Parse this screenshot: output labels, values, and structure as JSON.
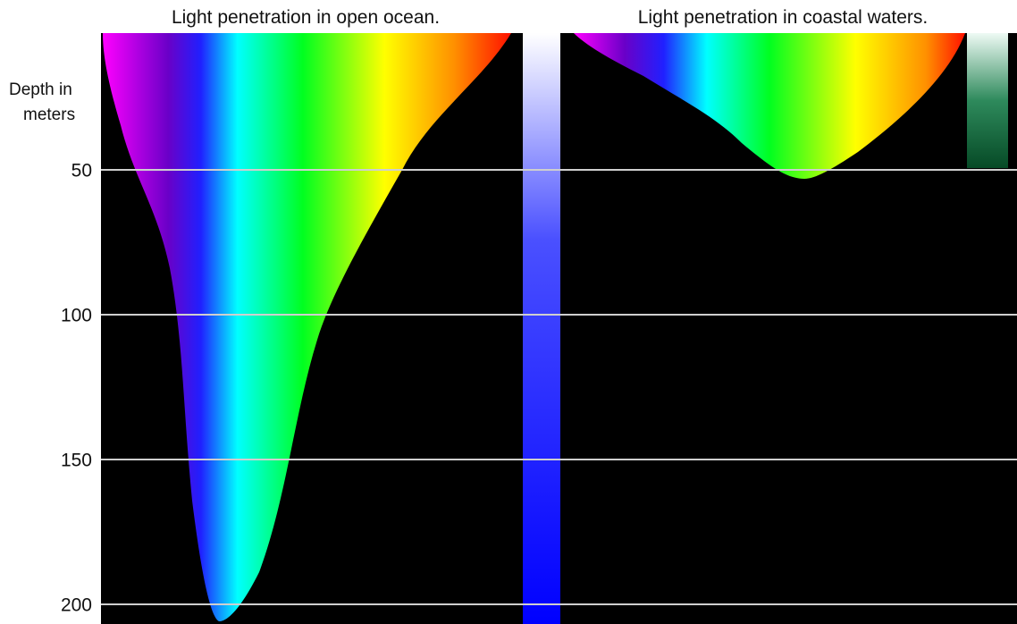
{
  "panels": [
    {
      "title": "Light penetration in open ocean."
    },
    {
      "title": "Light penetration in coastal waters."
    }
  ],
  "depth_axis": {
    "label_lines": [
      "Depth in",
      "meters"
    ],
    "ticks": [
      50,
      100,
      150,
      200
    ]
  }
}
